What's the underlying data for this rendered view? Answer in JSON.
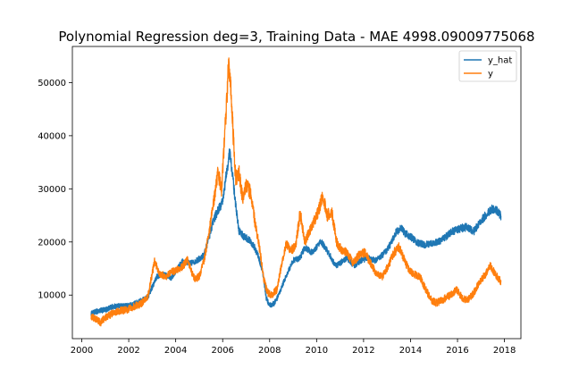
{
  "chart_data": {
    "type": "line",
    "title": "Polynomial Regression deg=3, Training Data - MAE 4998.09009775068",
    "xlabel": "",
    "ylabel": "",
    "xlim": [
      1999.6,
      2018.7
    ],
    "ylim": [
      1800,
      56800
    ],
    "x_ticks": [
      2000,
      2002,
      2004,
      2006,
      2008,
      2010,
      2012,
      2014,
      2016,
      2018
    ],
    "y_ticks": [
      10000,
      20000,
      30000,
      40000,
      50000
    ],
    "grid": false,
    "legend_position": "upper right",
    "series": [
      {
        "name": "y_hat",
        "color": "#1f77b4",
        "points": [
          [
            2000.4,
            6500
          ],
          [
            2000.7,
            7000
          ],
          [
            2001.0,
            7200
          ],
          [
            2001.3,
            7800
          ],
          [
            2001.6,
            8000
          ],
          [
            2001.9,
            7900
          ],
          [
            2002.2,
            8300
          ],
          [
            2002.5,
            8900
          ],
          [
            2002.8,
            9500
          ],
          [
            2003.0,
            11500
          ],
          [
            2003.2,
            13500
          ],
          [
            2003.5,
            14000
          ],
          [
            2003.8,
            13200
          ],
          [
            2004.0,
            14500
          ],
          [
            2004.3,
            16500
          ],
          [
            2004.6,
            16000
          ],
          [
            2004.9,
            16500
          ],
          [
            2005.2,
            17500
          ],
          [
            2005.4,
            20500
          ],
          [
            2005.6,
            24000
          ],
          [
            2005.8,
            26000
          ],
          [
            2006.0,
            27500
          ],
          [
            2006.1,
            31000
          ],
          [
            2006.2,
            34000
          ],
          [
            2006.3,
            37000
          ],
          [
            2006.4,
            33500
          ],
          [
            2006.55,
            27000
          ],
          [
            2006.7,
            22000
          ],
          [
            2006.9,
            21000
          ],
          [
            2007.1,
            20500
          ],
          [
            2007.3,
            19500
          ],
          [
            2007.5,
            17500
          ],
          [
            2007.7,
            14500
          ],
          [
            2007.85,
            9500
          ],
          [
            2008.0,
            8000
          ],
          [
            2008.2,
            8500
          ],
          [
            2008.4,
            10000
          ],
          [
            2008.6,
            12500
          ],
          [
            2008.8,
            14500
          ],
          [
            2009.0,
            16500
          ],
          [
            2009.3,
            17000
          ],
          [
            2009.5,
            19000
          ],
          [
            2009.8,
            18000
          ],
          [
            2010.0,
            19000
          ],
          [
            2010.2,
            20000
          ],
          [
            2010.5,
            18000
          ],
          [
            2010.8,
            15500
          ],
          [
            2011.0,
            16000
          ],
          [
            2011.3,
            17000
          ],
          [
            2011.6,
            15500
          ],
          [
            2011.9,
            16500
          ],
          [
            2012.2,
            17000
          ],
          [
            2012.5,
            16500
          ],
          [
            2012.8,
            17500
          ],
          [
            2013.0,
            18500
          ],
          [
            2013.2,
            20000
          ],
          [
            2013.4,
            22000
          ],
          [
            2013.6,
            22500
          ],
          [
            2013.8,
            21500
          ],
          [
            2014.0,
            21000
          ],
          [
            2014.3,
            19800
          ],
          [
            2014.6,
            19500
          ],
          [
            2014.9,
            19700
          ],
          [
            2015.2,
            20000
          ],
          [
            2015.5,
            21000
          ],
          [
            2015.8,
            22000
          ],
          [
            2016.1,
            22500
          ],
          [
            2016.4,
            22800
          ],
          [
            2016.7,
            22000
          ],
          [
            2017.0,
            24000
          ],
          [
            2017.3,
            25500
          ],
          [
            2017.5,
            26300
          ],
          [
            2017.7,
            25800
          ],
          [
            2017.85,
            24900
          ]
        ]
      },
      {
        "name": "y",
        "color": "#ff7f0e",
        "points": [
          [
            2000.4,
            6000
          ],
          [
            2000.6,
            5500
          ],
          [
            2000.8,
            4800
          ],
          [
            2001.0,
            5800
          ],
          [
            2001.3,
            6500
          ],
          [
            2001.6,
            7000
          ],
          [
            2001.9,
            7200
          ],
          [
            2002.2,
            7800
          ],
          [
            2002.5,
            8300
          ],
          [
            2002.8,
            9500
          ],
          [
            2003.0,
            14000
          ],
          [
            2003.1,
            16500
          ],
          [
            2003.3,
            14000
          ],
          [
            2003.6,
            13500
          ],
          [
            2003.9,
            14500
          ],
          [
            2004.2,
            15000
          ],
          [
            2004.5,
            16500
          ],
          [
            2004.8,
            13000
          ],
          [
            2005.0,
            13500
          ],
          [
            2005.2,
            16500
          ],
          [
            2005.4,
            21000
          ],
          [
            2005.6,
            27000
          ],
          [
            2005.8,
            33000
          ],
          [
            2005.95,
            30000
          ],
          [
            2006.05,
            37000
          ],
          [
            2006.15,
            45000
          ],
          [
            2006.25,
            53000
          ],
          [
            2006.35,
            49000
          ],
          [
            2006.45,
            40000
          ],
          [
            2006.55,
            32000
          ],
          [
            2006.7,
            33000
          ],
          [
            2006.85,
            28000
          ],
          [
            2007.0,
            31000
          ],
          [
            2007.2,
            29000
          ],
          [
            2007.4,
            23000
          ],
          [
            2007.6,
            18000
          ],
          [
            2007.75,
            13000
          ],
          [
            2007.9,
            10500
          ],
          [
            2008.1,
            10000
          ],
          [
            2008.3,
            11000
          ],
          [
            2008.5,
            15500
          ],
          [
            2008.7,
            19500
          ],
          [
            2008.9,
            18500
          ],
          [
            2009.1,
            19000
          ],
          [
            2009.3,
            25500
          ],
          [
            2009.5,
            20000
          ],
          [
            2009.7,
            22000
          ],
          [
            2009.9,
            24000
          ],
          [
            2010.1,
            26000
          ],
          [
            2010.25,
            29000
          ],
          [
            2010.45,
            25000
          ],
          [
            2010.65,
            25500
          ],
          [
            2010.85,
            20000
          ],
          [
            2011.05,
            18500
          ],
          [
            2011.3,
            18000
          ],
          [
            2011.55,
            16000
          ],
          [
            2011.8,
            17500
          ],
          [
            2012.05,
            18000
          ],
          [
            2012.3,
            16000
          ],
          [
            2012.55,
            14000
          ],
          [
            2012.8,
            13500
          ],
          [
            2013.05,
            15500
          ],
          [
            2013.3,
            18000
          ],
          [
            2013.5,
            19000
          ],
          [
            2013.7,
            17000
          ],
          [
            2013.9,
            15000
          ],
          [
            2014.1,
            14000
          ],
          [
            2014.4,
            13500
          ],
          [
            2014.65,
            11000
          ],
          [
            2014.9,
            9000
          ],
          [
            2015.1,
            8500
          ],
          [
            2015.4,
            9200
          ],
          [
            2015.7,
            10000
          ],
          [
            2015.95,
            11000
          ],
          [
            2016.2,
            9500
          ],
          [
            2016.45,
            9000
          ],
          [
            2016.7,
            10500
          ],
          [
            2016.95,
            12500
          ],
          [
            2017.2,
            14000
          ],
          [
            2017.4,
            15500
          ],
          [
            2017.6,
            14000
          ],
          [
            2017.85,
            12500
          ]
        ]
      }
    ]
  }
}
